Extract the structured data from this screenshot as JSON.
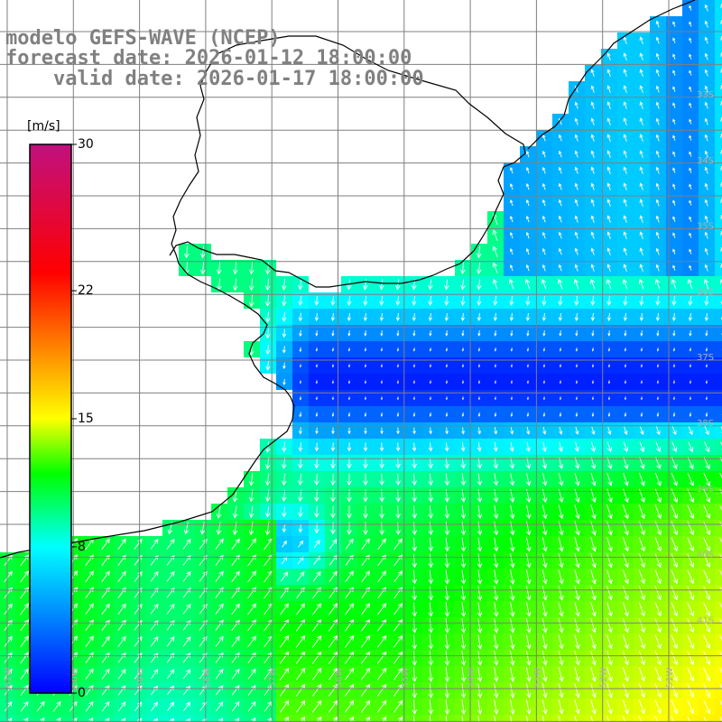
{
  "title": {
    "line1": "modelo GEFS-WAVE (NCEP)",
    "line2": "forecast date: 2026-01-12 18:00:00",
    "line3": "    valid date: 2026-01-17 18:00:00"
  },
  "colorbar": {
    "unit": "[m/s]",
    "min": 0,
    "max": 30,
    "ticks": [
      {
        "value": 30,
        "label": "30"
      },
      {
        "value": 22,
        "label": "22"
      },
      {
        "value": 15,
        "label": "15"
      },
      {
        "value": 8,
        "label": "8"
      },
      {
        "value": 0,
        "label": "0"
      }
    ],
    "stops": [
      {
        "value": 0,
        "color": "#0000ff"
      },
      {
        "value": 4,
        "color": "#0080ff"
      },
      {
        "value": 8,
        "color": "#00ffff"
      },
      {
        "value": 12,
        "color": "#00ff00"
      },
      {
        "value": 15,
        "color": "#ffff00"
      },
      {
        "value": 19,
        "color": "#ff8000"
      },
      {
        "value": 23,
        "color": "#ff0000"
      },
      {
        "value": 30,
        "color": "#c0107f"
      }
    ]
  },
  "lat_labels": [
    "33S",
    "34S",
    "35S",
    "36S",
    "37S",
    "38S",
    "39S",
    "40S",
    "41S"
  ],
  "lon_labels": [
    "61W",
    "60W",
    "59W",
    "58W",
    "57W",
    "56W",
    "55W",
    "54W",
    "53W",
    "52W",
    "51W",
    "50W"
  ],
  "field": {
    "description_units": "m/s",
    "land_color": "#ffffff",
    "coast_color": "#000000",
    "grid_color": "#7f7f7f",
    "arrow_color": "#ffffff"
  }
}
